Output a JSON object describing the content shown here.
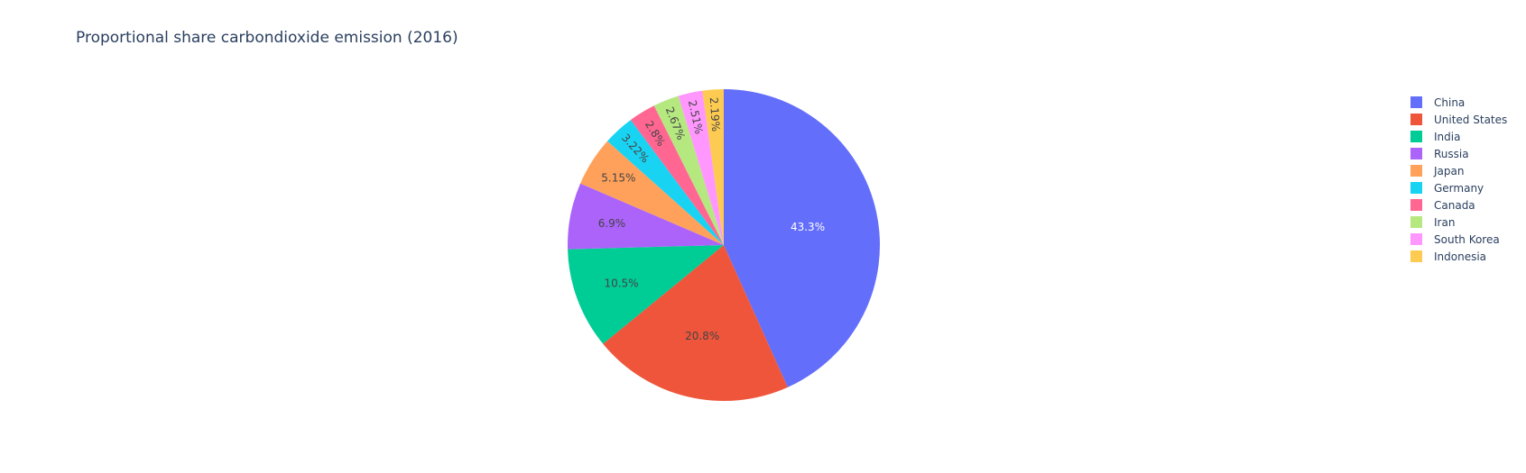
{
  "chart_data": {
    "type": "pie",
    "title": "Proportional share carbondioxide emission (2016)",
    "categories": [
      "China",
      "United States",
      "India",
      "Russia",
      "Japan",
      "Germany",
      "Canada",
      "Iran",
      "South Korea",
      "Indonesia"
    ],
    "values": [
      43.3,
      20.8,
      10.5,
      6.9,
      5.15,
      3.22,
      2.8,
      2.67,
      2.51,
      2.19
    ],
    "labels": [
      "43.3%",
      "20.8%",
      "10.5%",
      "6.9%",
      "5.15%",
      "3.22%",
      "2.8%",
      "2.67%",
      "2.51%",
      "2.19%"
    ],
    "colors": [
      "#636efa",
      "#EF553B",
      "#00cc96",
      "#ab63fa",
      "#FFA15A",
      "#19d3f3",
      "#FF6692",
      "#B6E880",
      "#FF97FF",
      "#FECB52"
    ],
    "label_colors": [
      "#ffffff",
      "#444444",
      "#444444",
      "#444444",
      "#444444",
      "#444444",
      "#444444",
      "#444444",
      "#444444",
      "#444444"
    ],
    "direction": "clockwise",
    "start_angle": "top",
    "legend_position": "right"
  },
  "legend": {
    "items": [
      {
        "label": "China",
        "color": "#636efa"
      },
      {
        "label": "United States",
        "color": "#EF553B"
      },
      {
        "label": "India",
        "color": "#00cc96"
      },
      {
        "label": "Russia",
        "color": "#ab63fa"
      },
      {
        "label": "Japan",
        "color": "#FFA15A"
      },
      {
        "label": "Germany",
        "color": "#19d3f3"
      },
      {
        "label": "Canada",
        "color": "#FF6692"
      },
      {
        "label": "Iran",
        "color": "#B6E880"
      },
      {
        "label": "South Korea",
        "color": "#FF97FF"
      },
      {
        "label": "Indonesia",
        "color": "#FECB52"
      }
    ]
  }
}
